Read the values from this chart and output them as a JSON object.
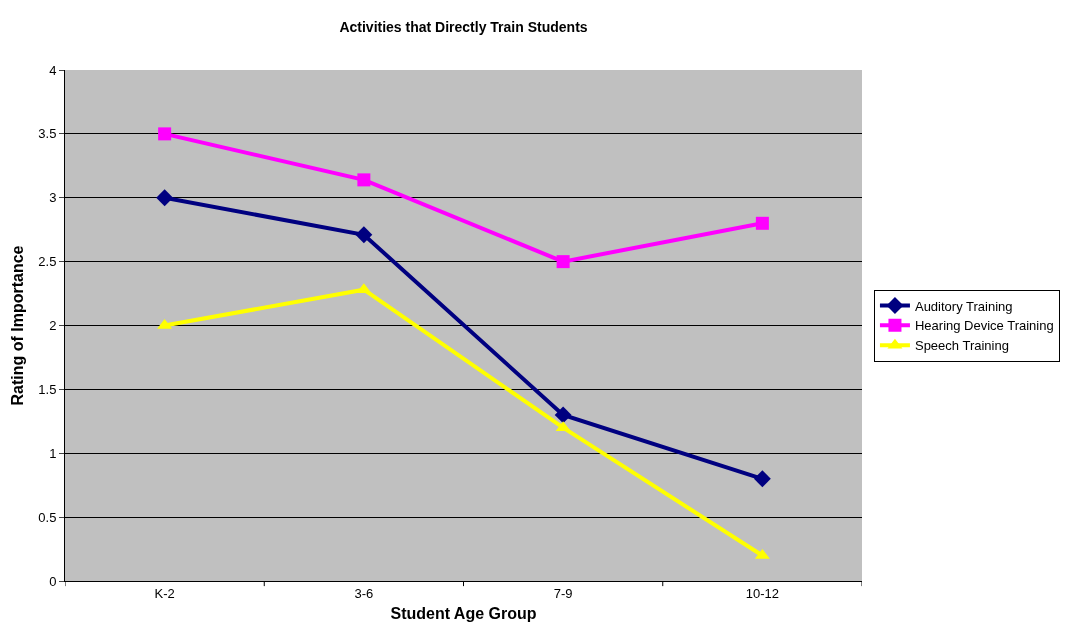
{
  "chart_data": {
    "type": "line",
    "title": "Activities that Directly Train Students",
    "xlabel": "Student Age Group",
    "ylabel": "Rating of Importance",
    "categories": [
      "K-2",
      "3-6",
      "7-9",
      "10-12"
    ],
    "series": [
      {
        "name": "Auditory Training",
        "color": "#000080",
        "marker": "diamond",
        "values": [
          3.0,
          2.71,
          1.3,
          0.8
        ]
      },
      {
        "name": "Hearing Device Training",
        "color": "#ff00ff",
        "marker": "square",
        "values": [
          3.5,
          3.14,
          2.5,
          2.8
        ]
      },
      {
        "name": "Speech Training",
        "color": "#ffff00",
        "marker": "triangle",
        "values": [
          2.0,
          2.28,
          1.2,
          0.2
        ]
      }
    ],
    "ylim": [
      0,
      4
    ],
    "yticks": [
      0,
      0.5,
      1,
      1.5,
      2,
      2.5,
      3,
      3.5,
      4
    ],
    "grid": "y",
    "legend": "right",
    "line_style": "solid"
  }
}
